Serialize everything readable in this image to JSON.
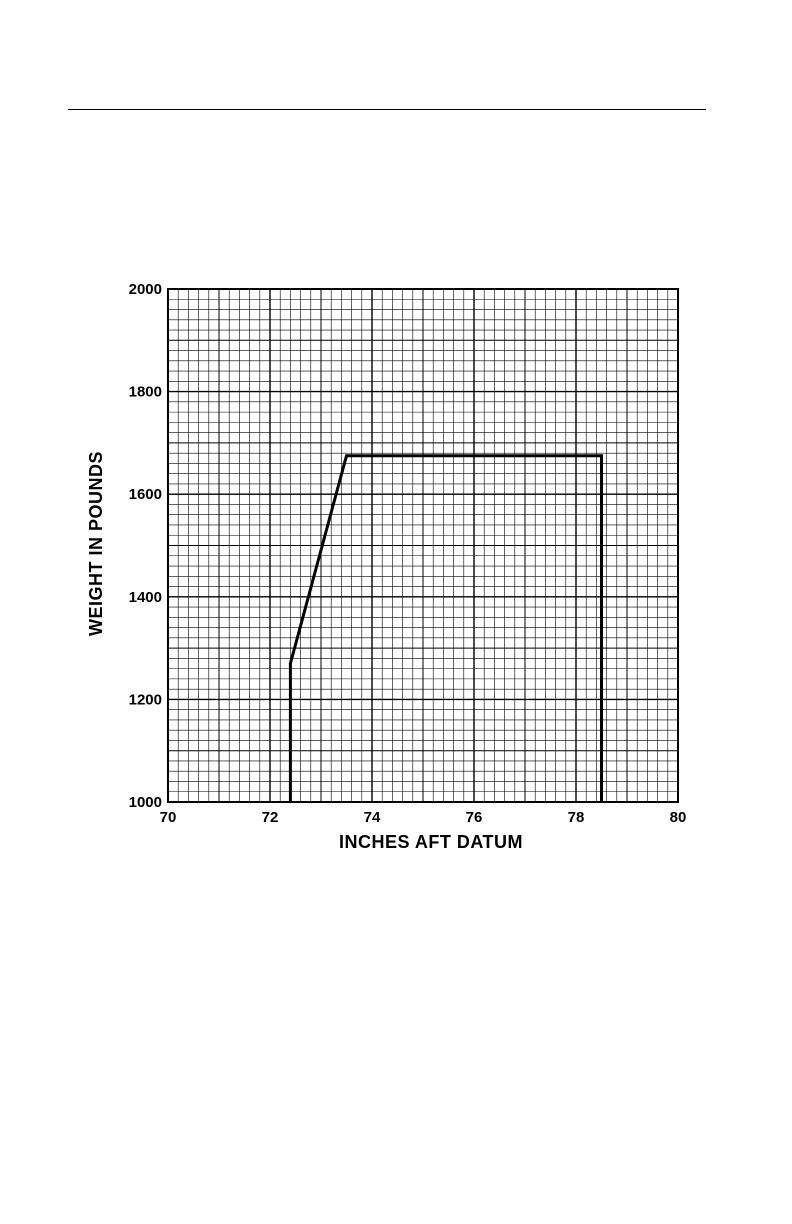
{
  "chart_data": {
    "type": "line",
    "title": "",
    "xlabel": "INCHES AFT DATUM",
    "ylabel": "WEIGHT IN POUNDS",
    "xlim": [
      70,
      80
    ],
    "ylim": [
      1000,
      2000
    ],
    "xticks": [
      70,
      72,
      74,
      76,
      78,
      80
    ],
    "yticks": [
      1000,
      1200,
      1400,
      1600,
      1800,
      2000
    ],
    "grid": true,
    "grid_minor_step": {
      "x": 0.2,
      "y": 20
    },
    "series": [
      {
        "color": "#000000",
        "points": [
          {
            "x": 72.4,
            "y": 1000
          },
          {
            "x": 72.4,
            "y": 1270
          },
          {
            "x": 73.5,
            "y": 1675
          },
          {
            "x": 78.5,
            "y": 1675
          },
          {
            "x": 78.5,
            "y": 1000
          }
        ]
      }
    ]
  },
  "colors": {
    "ink": "#000000",
    "paper": "#ffffff"
  }
}
